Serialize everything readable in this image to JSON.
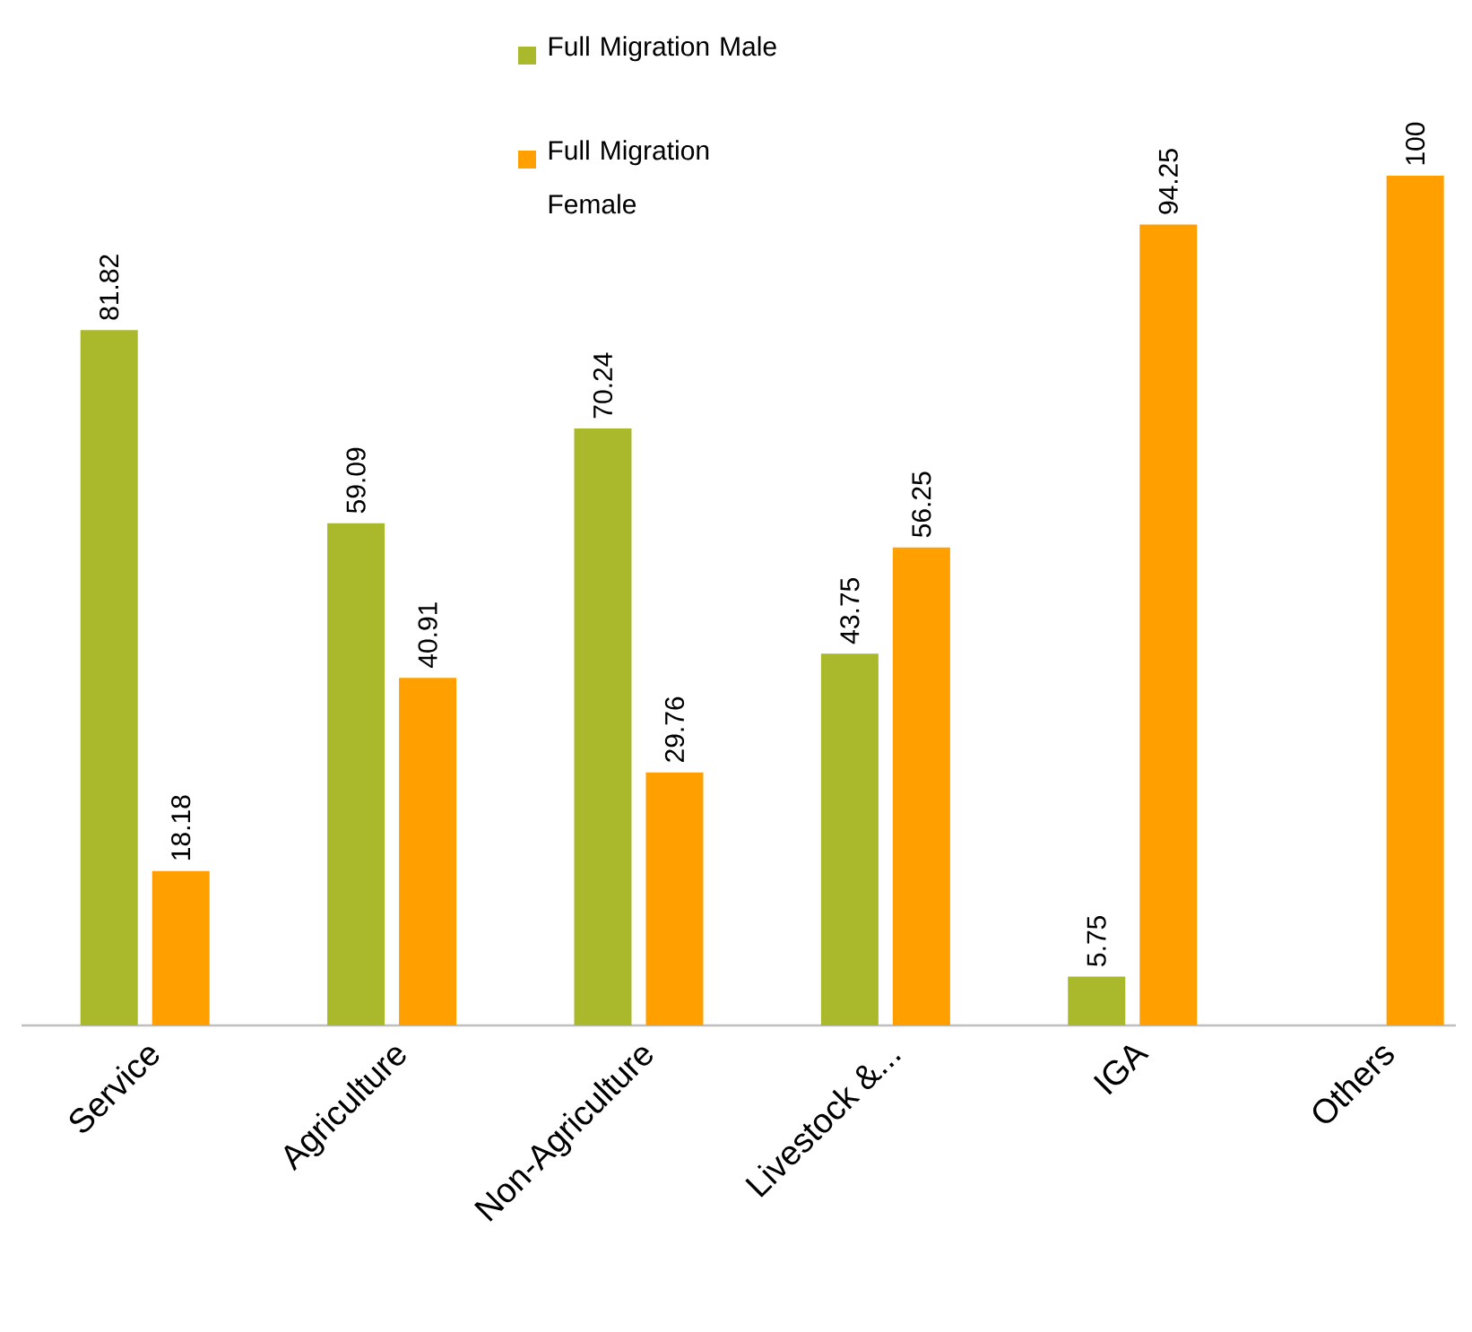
{
  "chart_data": {
    "type": "bar",
    "categories": [
      "Service",
      "Agriculture",
      "Non-Agriculture",
      "Livestock &...",
      "IGA",
      "Others"
    ],
    "series": [
      {
        "name": "Full Migration Male",
        "color": "#a9b92b",
        "values": [
          81.82,
          59.09,
          70.24,
          43.75,
          5.75,
          null
        ]
      },
      {
        "name": "Full Migration Female",
        "color": "#ff9f00",
        "values": [
          18.18,
          40.91,
          29.76,
          56.25,
          94.25,
          100
        ]
      }
    ],
    "ylim": [
      0,
      100
    ],
    "data_labels": true,
    "legend": "top"
  }
}
